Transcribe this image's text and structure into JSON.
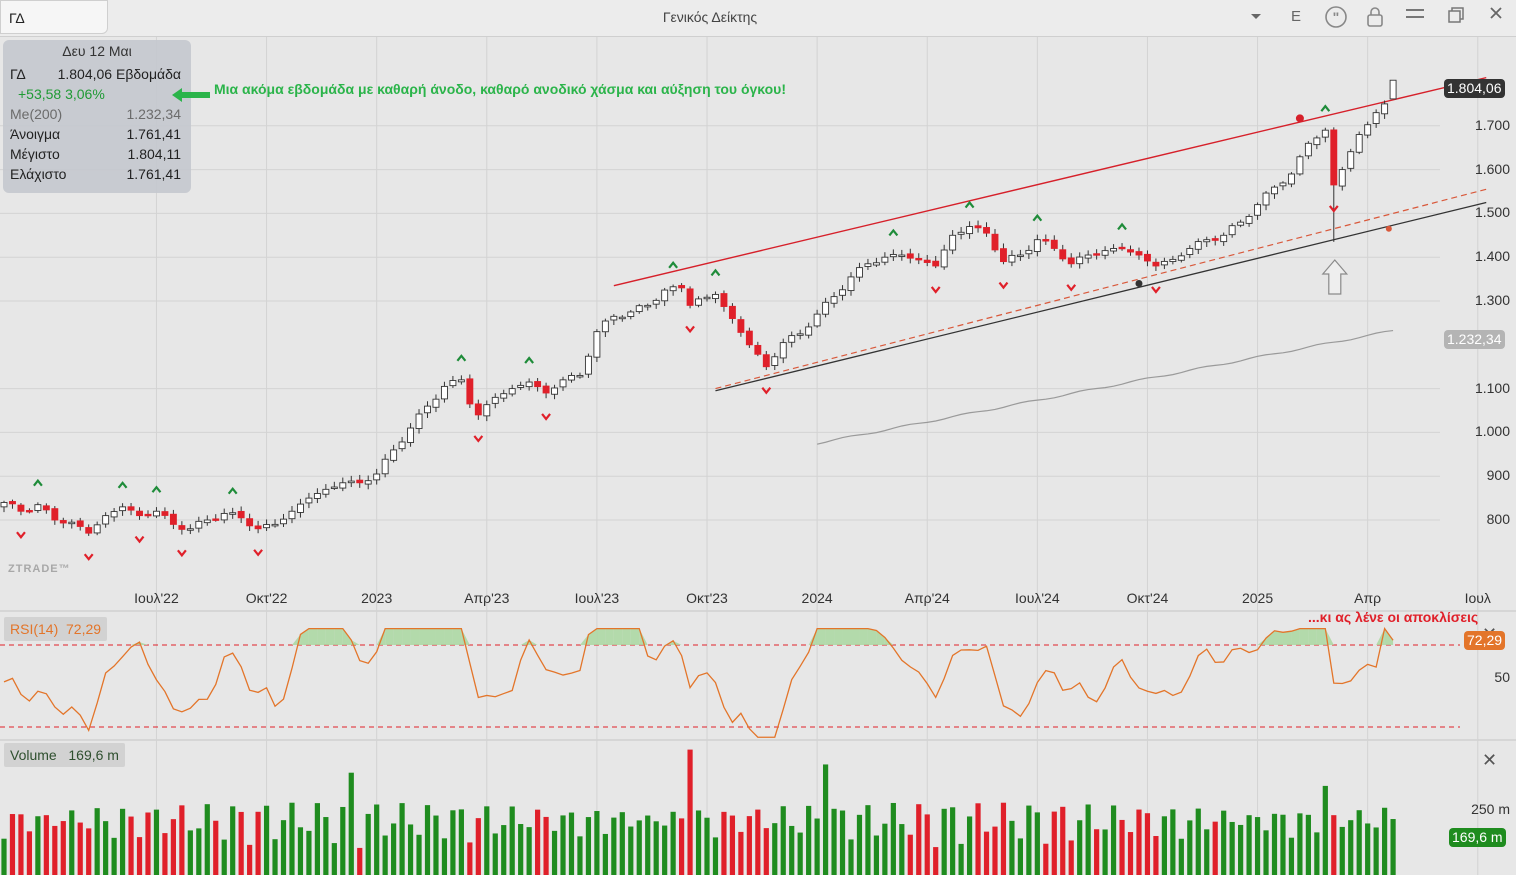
{
  "toolbar": {
    "symbol": "ΓΔ",
    "title": "Γενικός Δείκτης",
    "period_label": "E",
    "icons": [
      "dropdown-arrow-icon",
      "quote-icon",
      "lock-icon",
      "menu-icon",
      "maximize-icon",
      "close-icon"
    ]
  },
  "info": {
    "date": "Δευ 12 Μαι",
    "symbol": "ΓΔ",
    "price_period": "1.804,06 Εβδομάδα",
    "change": "+53,58 3,06%",
    "ma_label": "Me(200)",
    "ma_value": "1.232,34",
    "open_label": "Άνοιγμα",
    "open_value": "1.761,41",
    "high_label": "Μέγιστο",
    "high_value": "1.804,11",
    "low_label": "Ελάχιστο",
    "low_value": "1.761,41"
  },
  "annotations": {
    "top": "Μια ακόμα εβδομάδα με καθαρή άνοδο, καθαρό ανοδικό χάσμα και αύξηση του όγκου!",
    "rsi": "...κι ας λένε οι αποκλίσεις"
  },
  "watermark": "ZTRADE™",
  "colors": {
    "up": "#ffffff",
    "down": "#e0202a",
    "vol_up": "#1f8c1f",
    "vol_down": "#e0202a",
    "rsi": "#e3752a",
    "channel": "#d6202a",
    "trend": "#333333",
    "ma": "#9a9a9a",
    "fractal_up": "#1f8c3a",
    "fractal_down": "#e0202a"
  },
  "price_tags": {
    "last": "1.804,06",
    "ma": "1.232,34",
    "rsi": "72,29",
    "volume": "169,6 m"
  },
  "rsi": {
    "label": "RSI(14)",
    "value": "72,29",
    "levels": [
      70,
      30
    ],
    "tick": "50"
  },
  "volume": {
    "label": "Volume",
    "value": "169,6 m",
    "tick": "250 m"
  },
  "chart_data": {
    "type": "candlestick",
    "title": "Γενικός Δείκτης",
    "frequency": "weekly",
    "y_ticks": [
      "1.700",
      "1.600",
      "1.500",
      "1.400",
      "1.300",
      "1.100",
      "1.000",
      "900",
      "800"
    ],
    "y_tick_values": [
      1700,
      1600,
      1500,
      1400,
      1300,
      1100,
      1000,
      900,
      800
    ],
    "x_ticks": [
      "Ιουλ'22",
      "Οκτ'22",
      "2023",
      "Απρ'23",
      "Ιουλ'23",
      "Οκτ'23",
      "2024",
      "Απρ'24",
      "Ιουλ'24",
      "Οκτ'24",
      "2025",
      "Απρ",
      "Ιουλ"
    ],
    "x_tick_weeks": [
      18,
      31,
      44,
      57,
      70,
      83,
      96,
      109,
      122,
      135,
      148,
      161,
      174
    ],
    "key_closes": [
      [
        0,
        840
      ],
      [
        2,
        820
      ],
      [
        4,
        835
      ],
      [
        6,
        800
      ],
      [
        8,
        795
      ],
      [
        10,
        770
      ],
      [
        12,
        810
      ],
      [
        14,
        830
      ],
      [
        16,
        810
      ],
      [
        18,
        820
      ],
      [
        20,
        790
      ],
      [
        22,
        780
      ],
      [
        24,
        800
      ],
      [
        26,
        815
      ],
      [
        28,
        805
      ],
      [
        30,
        780
      ],
      [
        32,
        790
      ],
      [
        34,
        820
      ],
      [
        36,
        850
      ],
      [
        38,
        870
      ],
      [
        40,
        885
      ],
      [
        42,
        885
      ],
      [
        44,
        905
      ],
      [
        46,
        960
      ],
      [
        48,
        1010
      ],
      [
        50,
        1060
      ],
      [
        52,
        1105
      ],
      [
        54,
        1120
      ],
      [
        55,
        1065
      ],
      [
        56,
        1040
      ],
      [
        58,
        1080
      ],
      [
        60,
        1100
      ],
      [
        62,
        1115
      ],
      [
        64,
        1090
      ],
      [
        66,
        1120
      ],
      [
        68,
        1130
      ],
      [
        70,
        1230
      ],
      [
        72,
        1265
      ],
      [
        74,
        1275
      ],
      [
        76,
        1290
      ],
      [
        78,
        1325
      ],
      [
        80,
        1330
      ],
      [
        81,
        1290
      ],
      [
        84,
        1315
      ],
      [
        86,
        1260
      ],
      [
        88,
        1200
      ],
      [
        90,
        1150
      ],
      [
        92,
        1205
      ],
      [
        94,
        1225
      ],
      [
        96,
        1270
      ],
      [
        98,
        1310
      ],
      [
        100,
        1355
      ],
      [
        102,
        1385
      ],
      [
        104,
        1400
      ],
      [
        106,
        1405
      ],
      [
        108,
        1395
      ],
      [
        110,
        1380
      ],
      [
        112,
        1450
      ],
      [
        114,
        1470
      ],
      [
        116,
        1455
      ],
      [
        118,
        1390
      ],
      [
        120,
        1405
      ],
      [
        122,
        1440
      ],
      [
        124,
        1420
      ],
      [
        126,
        1385
      ],
      [
        128,
        1405
      ],
      [
        130,
        1415
      ],
      [
        132,
        1420
      ],
      [
        134,
        1405
      ],
      [
        136,
        1380
      ],
      [
        138,
        1395
      ],
      [
        140,
        1420
      ],
      [
        142,
        1440
      ],
      [
        144,
        1450
      ],
      [
        146,
        1480
      ],
      [
        148,
        1520
      ],
      [
        150,
        1560
      ],
      [
        152,
        1590
      ],
      [
        154,
        1660
      ],
      [
        156,
        1690
      ],
      [
        157,
        1565
      ],
      [
        158,
        1600
      ],
      [
        160,
        1680
      ],
      [
        162,
        1730
      ],
      [
        163,
        1750
      ],
      [
        164,
        1804.06
      ]
    ],
    "channel_upper": {
      "from": {
        "week": 72,
        "value": 1335
      },
      "to": {
        "week": 175,
        "value": 1810
      }
    },
    "channel_lower": {
      "from": {
        "week": 84,
        "value": 1095
      },
      "to": {
        "week": 175,
        "value": 1525
      }
    },
    "support_dashed": {
      "from": {
        "week": 84,
        "value": 1100
      },
      "to": {
        "week": 175,
        "value": 1555
      }
    },
    "ma200": {
      "from": {
        "week": 96,
        "value": 975
      },
      "to": {
        "week": 164,
        "value": 1232.34
      }
    },
    "last": {
      "open": 1761.41,
      "high": 1804.11,
      "low": 1761.41,
      "close": 1804.06,
      "change": 53.58,
      "change_pct": 3.06
    }
  }
}
